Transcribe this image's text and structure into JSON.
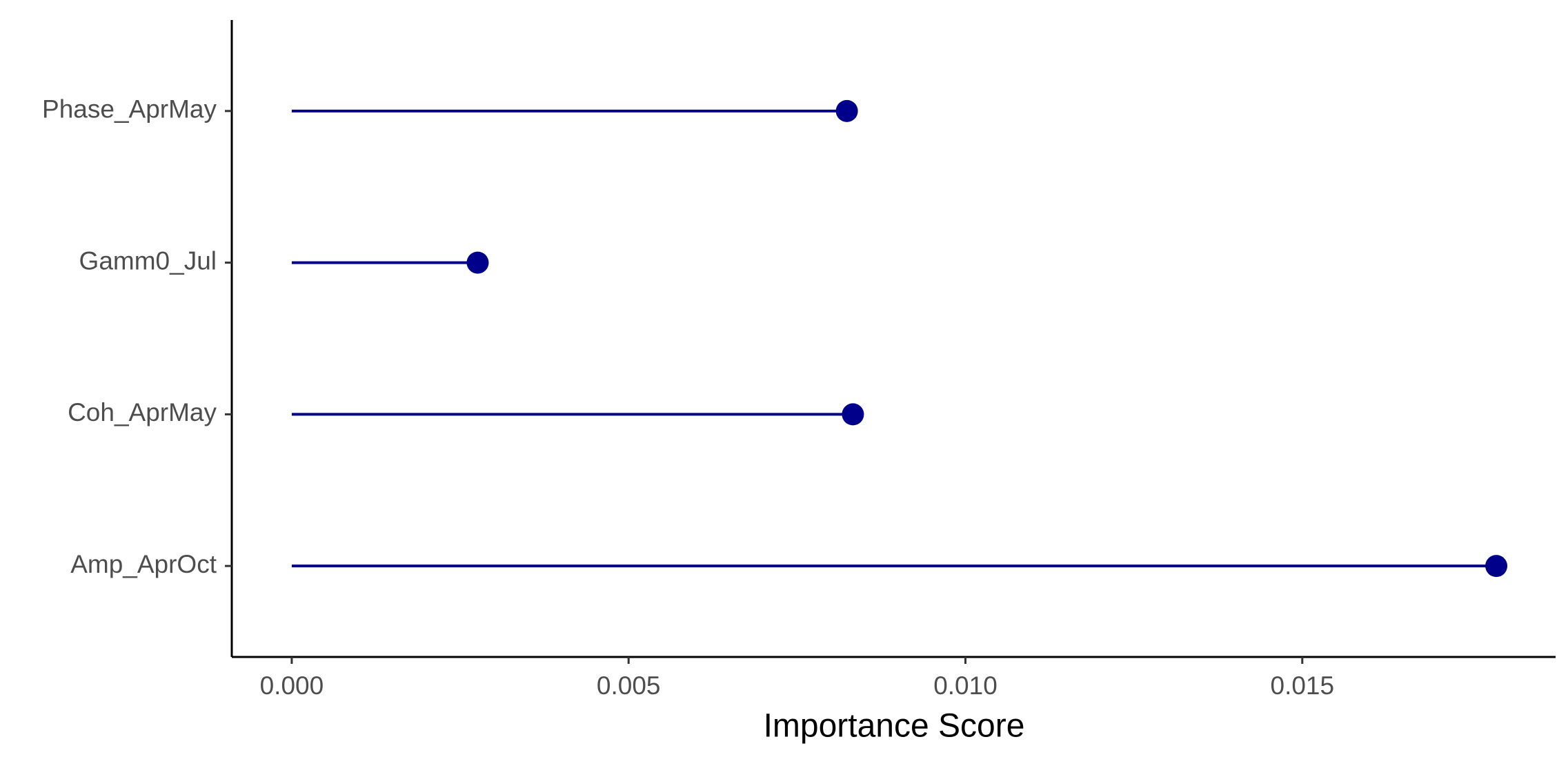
{
  "chart_data": {
    "type": "lollipop",
    "x_label": "Importance Score",
    "categories": [
      "Phase_AprMay",
      "Gamm0_Jul",
      "Coh_AprMay",
      "Amp_AprOct"
    ],
    "values": [
      0.00824,
      0.00276,
      0.00833,
      0.01788
    ],
    "color": "#00008b",
    "xlim": [
      -0.00089,
      0.01876
    ],
    "xticks": [
      {
        "value": 0,
        "label": "0.000"
      },
      {
        "value": 0.005,
        "label": "0.005"
      },
      {
        "value": 0.01,
        "label": "0.010"
      },
      {
        "value": 0.015,
        "label": "0.015"
      }
    ],
    "grid": false
  }
}
